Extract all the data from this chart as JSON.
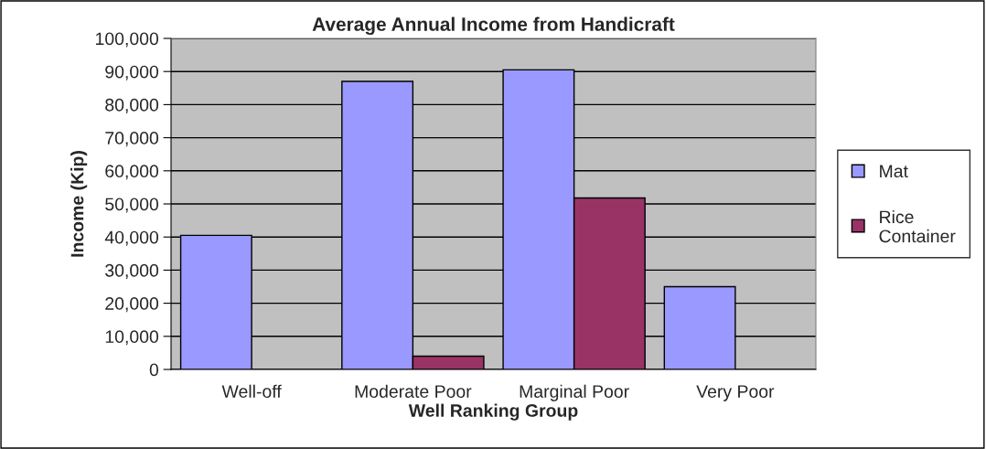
{
  "chart_data": {
    "type": "bar",
    "title": "Average Annual Income from Handicraft",
    "xlabel": "Well Ranking Group",
    "ylabel": "Income (Kip)",
    "categories": [
      "Well-off",
      "Moderate Poor",
      "Marginal Poor",
      "Very Poor"
    ],
    "series": [
      {
        "name": "Mat",
        "color": "#9999ff",
        "values": [
          40500,
          87000,
          90500,
          25000
        ]
      },
      {
        "name": "Rice Container",
        "color": "#993366",
        "values": [
          null,
          4000,
          51800,
          null
        ]
      }
    ],
    "ylim": [
      0,
      100000
    ],
    "yticks": [
      {
        "value": 0,
        "label": "0"
      },
      {
        "value": 10000,
        "label": "10,000"
      },
      {
        "value": 20000,
        "label": "20,000"
      },
      {
        "value": 30000,
        "label": "30,000"
      },
      {
        "value": 40000,
        "label": "40,000"
      },
      {
        "value": 50000,
        "label": "50,000"
      },
      {
        "value": 60000,
        "label": "60,000"
      },
      {
        "value": 70000,
        "label": "70,000"
      },
      {
        "value": 80000,
        "label": "80,000"
      },
      {
        "value": 90000,
        "label": "90,000"
      },
      {
        "value": 100000,
        "label": "100,000"
      }
    ],
    "grid": "y",
    "legend": "right"
  }
}
